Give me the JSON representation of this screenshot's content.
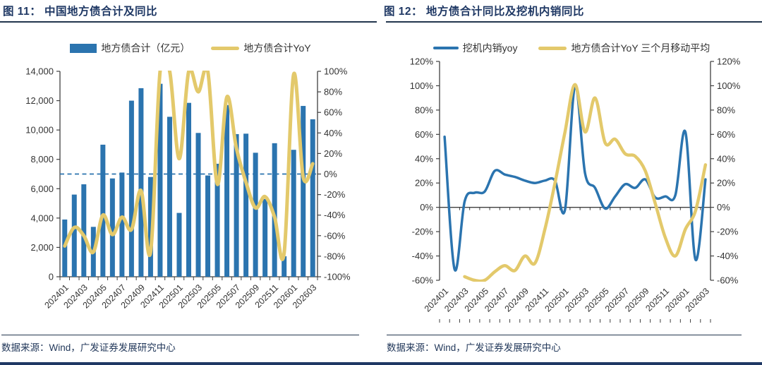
{
  "colors": {
    "blue": "#2B74AF",
    "yellow": "#E3C96B",
    "navy": "#1F3864",
    "axis": "#404040"
  },
  "chart_data": [
    {
      "type": "bar+line",
      "title": "图 11： 中国地方债合计及同比",
      "source": "数据来源：Wind，广发证券发展研究中心",
      "categories": [
        "202401",
        "202402",
        "202403",
        "202404",
        "202405",
        "202406",
        "202407",
        "202408",
        "202409",
        "202410",
        "202411",
        "202412",
        "202501",
        "202502",
        "202503",
        "202504",
        "202505",
        "202506",
        "202507",
        "202508",
        "202509",
        "202510",
        "202511",
        "202512",
        "202601",
        "202602",
        "202603"
      ],
      "x_tick_labels": [
        "202401",
        "202403",
        "202405",
        "202407",
        "202409",
        "202411",
        "202501",
        "202503",
        "202505",
        "202507",
        "202509",
        "202511",
        "202601",
        "202603"
      ],
      "series": [
        {
          "name": "地方债合计（亿元）",
          "type": "bar",
          "axis": "left",
          "color": "#2B74AF",
          "values": [
            3900,
            5600,
            6300,
            3400,
            9000,
            6700,
            7100,
            12000,
            12850,
            6800,
            13150,
            10900,
            4350,
            11850,
            9800,
            6900,
            7700,
            11700,
            9720,
            9750,
            8450,
            5300,
            9100,
            1400,
            8650,
            11640,
            10730
          ]
        },
        {
          "name": "地方债合计YoY",
          "type": "line",
          "axis": "right",
          "color": "#E3C96B",
          "values": [
            -70,
            -52,
            -60,
            -76,
            -40,
            -59,
            -42,
            -54,
            -16,
            -76,
            100,
            100,
            15,
            100,
            80,
            100,
            -10,
            75,
            25,
            -8,
            -33,
            -22,
            -42,
            -77,
            97,
            -3,
            10
          ]
        }
      ],
      "left_axis": {
        "min": 0,
        "max": 14000,
        "step": 2000,
        "format": "number"
      },
      "right_axis": {
        "min": -100,
        "max": 100,
        "step": 20,
        "format": "percent"
      },
      "reference_line": {
        "axis": "right",
        "value": 0,
        "style": "dashed",
        "color": "#2B74AF"
      },
      "legend_position": "top",
      "grid": false
    },
    {
      "type": "line",
      "title": "图 12： 地方债合计同比及挖机内销同比",
      "source": "数据来源：Wind，广发证券发展研究中心",
      "categories": [
        "202401",
        "202402",
        "202403",
        "202404",
        "202405",
        "202406",
        "202407",
        "202408",
        "202409",
        "202410",
        "202411",
        "202412",
        "202501",
        "202502",
        "202503",
        "202504",
        "202505",
        "202506",
        "202507",
        "202508",
        "202509",
        "202510",
        "202511",
        "202512",
        "202601",
        "202602",
        "202603"
      ],
      "x_tick_labels": [
        "202401",
        "202403",
        "202405",
        "202407",
        "202409",
        "202411",
        "202501",
        "202503",
        "202505",
        "202507",
        "202509",
        "202511",
        "202601",
        "202603"
      ],
      "series": [
        {
          "name": "挖机内销yoy",
          "type": "line",
          "axis": "left",
          "color": "#2B74AF",
          "values": [
            58,
            -51,
            5,
            12,
            13,
            30,
            27,
            25,
            22,
            20,
            22,
            22,
            -2,
            100,
            28,
            16,
            -1,
            9,
            19,
            16,
            23,
            8,
            9,
            10,
            62,
            -43,
            23
          ]
        },
        {
          "name": "地方债合计YoY 三个月移动平均",
          "type": "line",
          "axis": "left",
          "color": "#E3C96B",
          "values": [
            null,
            null,
            -57,
            -61,
            -60,
            -53,
            -48,
            -52,
            -40,
            -46,
            -18,
            20,
            62,
            101,
            62,
            90,
            53,
            56,
            44,
            42,
            30,
            3,
            -25,
            -40,
            -18,
            -3,
            35
          ]
        }
      ],
      "left_axis": {
        "min": -60,
        "max": 120,
        "step": 20,
        "format": "percent"
      },
      "right_axis": {
        "min": -60,
        "max": 120,
        "step": 20,
        "format": "percent"
      },
      "zero_line": true,
      "legend_position": "top",
      "grid": false
    }
  ]
}
